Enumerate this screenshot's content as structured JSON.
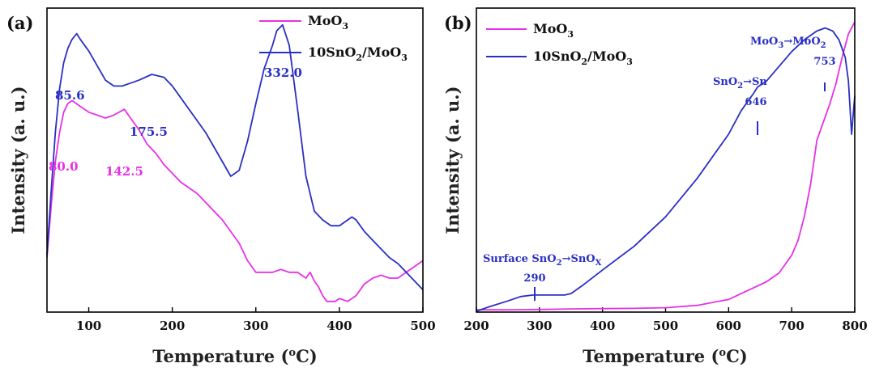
{
  "colors": {
    "moo3": "#e631e6",
    "sno2_moo3": "#2a2fc4",
    "axis": "#000000",
    "ann_blue": "#2a2fc4",
    "ann_magenta": "#e631e6"
  },
  "chart_data": [
    {
      "panel": "(a)",
      "type": "line",
      "title": "",
      "xlabel": "Temperature (°C)",
      "ylabel": "Intensity (a. u.)",
      "xlim": [
        50,
        500
      ],
      "ylim": [
        0,
        100
      ],
      "xticks": [
        "100",
        "200",
        "300",
        "400",
        "500"
      ],
      "legend": {
        "position": "top-right",
        "entries": [
          "MoO3",
          "10SnO2/MoO3"
        ]
      },
      "series": [
        {
          "name": "MoO3",
          "x": [
            50,
            55,
            60,
            65,
            70,
            75,
            80,
            90,
            100,
            110,
            120,
            130,
            142.5,
            150,
            160,
            170,
            180,
            190,
            200,
            210,
            220,
            230,
            240,
            250,
            260,
            270,
            280,
            290,
            300,
            310,
            320,
            330,
            340,
            350,
            360,
            365,
            370,
            375,
            380,
            385,
            390,
            395,
            400,
            410,
            420,
            430,
            440,
            450,
            460,
            470,
            480,
            490,
            500
          ],
          "y": [
            17,
            35,
            50,
            60,
            67,
            70,
            71,
            69,
            67,
            66,
            65,
            66,
            68,
            65,
            61,
            56,
            53,
            49,
            46,
            43,
            41,
            39,
            36,
            33,
            30,
            26,
            22,
            16,
            12,
            12,
            12,
            13,
            12,
            12,
            10,
            12,
            9,
            7,
            4,
            2,
            2,
            2,
            3,
            2,
            4,
            8,
            10,
            11,
            10,
            10,
            12,
            14,
            16
          ]
        },
        {
          "name": "10SnO2/MoO3",
          "x": [
            50,
            55,
            60,
            65,
            70,
            75,
            80,
            85.6,
            90,
            100,
            110,
            120,
            130,
            140,
            150,
            160,
            175.5,
            190,
            200,
            210,
            220,
            230,
            240,
            250,
            260,
            270,
            280,
            290,
            300,
            310,
            320,
            325,
            332,
            340,
            350,
            360,
            370,
            380,
            390,
            400,
            410,
            415,
            420,
            430,
            440,
            450,
            460,
            470,
            480,
            490,
            500
          ],
          "y": [
            18,
            40,
            60,
            75,
            84,
            89,
            92,
            94,
            92,
            88,
            83,
            78,
            76,
            76,
            77,
            78,
            80,
            79,
            76,
            72,
            68,
            64,
            60,
            55,
            50,
            45,
            47,
            57,
            70,
            82,
            90,
            95,
            97,
            90,
            68,
            45,
            33,
            30,
            28,
            28,
            30,
            31,
            30,
            26,
            23,
            20,
            17,
            15,
            12,
            9,
            6
          ]
        }
      ],
      "annotations": [
        {
          "text": "85.6",
          "series": "10SnO2/MoO3",
          "x": 85.6
        },
        {
          "text": "175.5",
          "series": "10SnO2/MoO3",
          "x": 175.5
        },
        {
          "text": "332.0",
          "series": "10SnO2/MoO3",
          "x": 332.0
        },
        {
          "text": "80.0",
          "series": "MoO3",
          "x": 80.0
        },
        {
          "text": "142.5",
          "series": "MoO3",
          "x": 142.5
        }
      ]
    },
    {
      "panel": "(b)",
      "type": "line",
      "title": "",
      "xlabel": "Temperature (°C)",
      "ylabel": "Intensity (a. u.)",
      "xlim": [
        200,
        800
      ],
      "ylim": [
        0,
        100
      ],
      "xticks": [
        "200",
        "300",
        "400",
        "500",
        "600",
        "700",
        "800"
      ],
      "legend": {
        "position": "top-left",
        "entries": [
          "MoO3",
          "10SnO2/MoO3"
        ]
      },
      "series": [
        {
          "name": "MoO3",
          "x": [
            200,
            250,
            300,
            350,
            400,
            450,
            500,
            550,
            600,
            620,
            640,
            660,
            680,
            700,
            710,
            720,
            730,
            740,
            750,
            760,
            770,
            780,
            790,
            795,
            800
          ],
          "y": [
            0.5,
            0.5,
            0.6,
            0.8,
            0.9,
            1,
            1.2,
            2,
            4,
            6,
            8,
            10,
            13,
            19,
            24,
            32,
            43,
            58,
            64,
            70,
            77,
            86,
            94,
            96,
            98
          ]
        },
        {
          "name": "10SnO2/MoO3",
          "x": [
            200,
            220,
            250,
            270,
            290,
            300,
            320,
            340,
            350,
            370,
            400,
            450,
            500,
            550,
            600,
            620,
            640,
            646,
            660,
            680,
            700,
            720,
            740,
            753,
            765,
            775,
            785,
            790,
            795,
            800
          ],
          "y": [
            0,
            1.5,
            3.5,
            5,
            5.5,
            5.5,
            5.5,
            5.5,
            6,
            9,
            14,
            22,
            32,
            45,
            60,
            68,
            74,
            76,
            78,
            83,
            88,
            92,
            95,
            96,
            95,
            92,
            86,
            78,
            60,
            73
          ]
        }
      ],
      "annotations": [
        {
          "label": "Surface SnO2→SnOx",
          "value": "290",
          "series": "10SnO2/MoO3",
          "x": 290
        },
        {
          "label": "SnO2→Sn",
          "value": "646",
          "series": "10SnO2/MoO3",
          "x": 646
        },
        {
          "label": "MoO3→MoO2",
          "value": "753",
          "series": "10SnO2/MoO3",
          "x": 753
        }
      ]
    }
  ],
  "figure": {
    "panel_a_label": "(a)",
    "panel_b_label": "(b)",
    "ylabel": "Intensity (a. u.)",
    "xlabel_text": "Temperature (",
    "xlabel_deg": "o",
    "xlabel_unit": "C)",
    "legend_moo3_main": "MoO",
    "legend_moo3_sub": "3",
    "legend_sn_main1": "10SnO",
    "legend_sn_sub1": "2",
    "legend_sn_main2": "/MoO",
    "legend_sn_sub2": "3",
    "b_ann": {
      "surface_prefix": "Surface SnO",
      "surface_sub2": "2",
      "arrow": "→",
      "snox_main": "SnO",
      "snox_sub": "X",
      "val_290": "290",
      "sno2_main": "SnO",
      "sno2_sub": "2",
      "sn": "Sn",
      "val_646": "646",
      "moo3_main": "MoO",
      "moo3_sub": "3",
      "moo2_main": "MoO",
      "moo2_sub": "2",
      "val_753": "753"
    }
  }
}
